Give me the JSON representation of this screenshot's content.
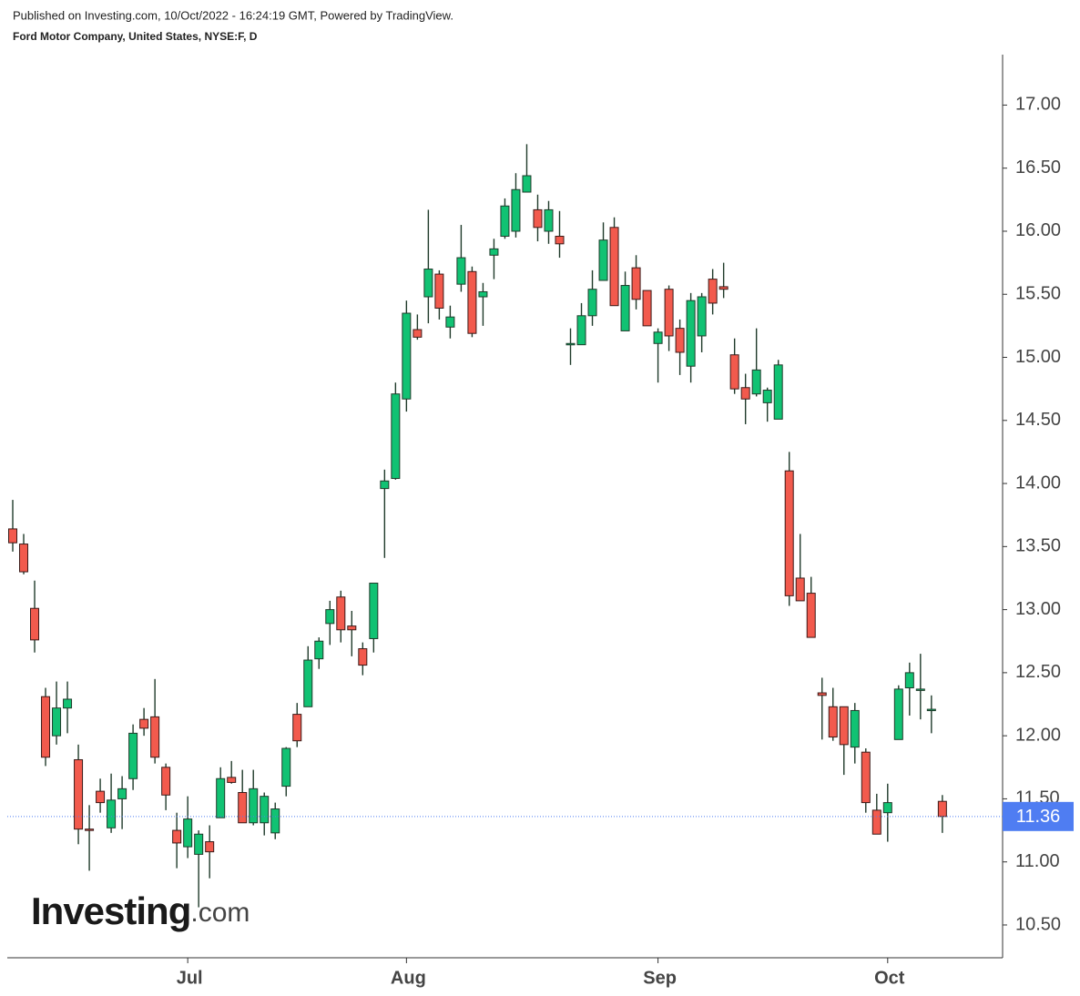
{
  "header": {
    "published": "Published on Investing.com, 10/Oct/2022 - 16:24:19 GMT, Powered by TradingView.",
    "symbol": "Ford Motor Company, United States, NYSE:F, D"
  },
  "logo": {
    "brand": "Investing",
    "suffix": ".com"
  },
  "chart_data": {
    "type": "candlestick",
    "categories": [
      null,
      null,
      null,
      null,
      null,
      null,
      null,
      null,
      null,
      null,
      null,
      null,
      null,
      null,
      null,
      null,
      "Jul",
      null,
      null,
      null,
      null,
      null,
      null,
      null,
      null,
      null,
      null,
      null,
      null,
      null,
      null,
      null,
      null,
      null,
      null,
      null,
      "Aug",
      null,
      null,
      null,
      null,
      null,
      null,
      null,
      null,
      null,
      null,
      null,
      null,
      null,
      null,
      null,
      null,
      null,
      null,
      null,
      null,
      null,
      null,
      "Sep",
      null,
      null,
      null,
      null,
      null,
      null,
      null,
      null,
      null,
      null,
      null,
      null,
      null,
      null,
      null,
      null,
      null,
      null,
      null,
      null,
      "Oct",
      null,
      null,
      null,
      null,
      null
    ],
    "open": [
      13.64,
      13.52,
      13.01,
      12.31,
      12.0,
      12.22,
      11.81,
      11.26,
      11.56,
      11.27,
      11.5,
      11.66,
      12.13,
      12.15,
      11.75,
      11.25,
      11.12,
      11.06,
      11.16,
      11.35,
      11.67,
      11.55,
      11.31,
      11.31,
      11.23,
      11.6,
      12.17,
      12.23,
      12.61,
      12.89,
      13.1,
      12.87,
      12.69,
      12.77,
      13.96,
      14.04,
      14.67,
      15.22,
      15.48,
      15.66,
      15.24,
      15.58,
      15.68,
      15.48,
      15.81,
      15.96,
      16.0,
      16.31,
      16.17,
      16.0,
      15.96,
      15.1,
      15.1,
      15.33,
      15.61,
      16.03,
      15.21,
      15.71,
      15.53,
      15.11,
      15.54,
      15.23,
      14.93,
      15.17,
      15.62,
      15.56,
      15.02,
      14.76,
      14.71,
      14.64,
      14.51,
      14.1,
      13.25,
      13.13,
      12.34,
      12.23,
      12.23,
      11.91,
      11.87,
      11.41,
      11.39,
      11.97,
      12.38,
      12.36,
      12.2,
      11.48
    ],
    "high": [
      13.87,
      13.6,
      13.23,
      12.38,
      12.43,
      12.43,
      11.93,
      11.45,
      11.66,
      11.7,
      11.68,
      12.09,
      12.22,
      12.45,
      11.78,
      11.39,
      11.52,
      11.25,
      11.29,
      11.75,
      11.8,
      11.73,
      11.73,
      11.55,
      11.47,
      11.91,
      12.26,
      12.71,
      12.78,
      13.07,
      13.15,
      12.99,
      12.74,
      13.21,
      14.11,
      14.8,
      15.45,
      15.34,
      16.17,
      15.69,
      15.41,
      16.05,
      15.72,
      15.59,
      15.94,
      16.26,
      16.46,
      16.69,
      16.29,
      16.24,
      16.16,
      15.23,
      15.43,
      15.69,
      16.07,
      16.11,
      15.68,
      15.81,
      15.53,
      15.23,
      15.57,
      15.3,
      15.51,
      15.51,
      15.7,
      15.75,
      15.15,
      14.87,
      15.23,
      14.76,
      14.98,
      14.25,
      13.6,
      13.26,
      12.46,
      12.38,
      12.23,
      12.26,
      11.9,
      11.54,
      11.62,
      12.4,
      12.58,
      12.65,
      12.32,
      11.53
    ],
    "low": [
      13.46,
      13.28,
      12.66,
      11.76,
      11.93,
      12.02,
      11.14,
      10.93,
      11.39,
      11.23,
      11.26,
      11.57,
      12.0,
      11.78,
      11.41,
      10.95,
      11.03,
      10.64,
      10.87,
      11.35,
      11.62,
      11.31,
      11.29,
      11.21,
      11.18,
      11.52,
      11.91,
      12.23,
      12.53,
      12.72,
      12.74,
      12.63,
      12.48,
      12.66,
      13.41,
      14.03,
      14.57,
      15.14,
      15.27,
      15.3,
      15.15,
      15.52,
      15.16,
      15.25,
      15.62,
      15.94,
      15.95,
      16.31,
      15.92,
      15.9,
      15.79,
      14.94,
      15.1,
      15.25,
      15.61,
      15.41,
      15.21,
      15.38,
      15.25,
      14.8,
      15.05,
      14.86,
      14.8,
      15.04,
      15.34,
      15.47,
      14.71,
      14.47,
      14.69,
      14.49,
      14.51,
      13.03,
      13.07,
      12.78,
      11.97,
      11.96,
      11.69,
      11.78,
      11.39,
      11.22,
      11.16,
      11.97,
      12.16,
      12.13,
      12.02,
      11.23
    ],
    "close": [
      13.53,
      13.3,
      12.76,
      11.83,
      12.22,
      12.29,
      11.26,
      11.25,
      11.47,
      11.49,
      11.58,
      12.02,
      12.06,
      11.83,
      11.53,
      11.15,
      11.34,
      11.22,
      11.08,
      11.66,
      11.63,
      11.31,
      11.58,
      11.52,
      11.42,
      11.9,
      11.96,
      12.6,
      12.75,
      13.0,
      12.84,
      12.84,
      12.56,
      13.21,
      14.02,
      14.71,
      15.35,
      15.16,
      15.7,
      15.39,
      15.32,
      15.79,
      15.19,
      15.52,
      15.86,
      16.2,
      16.33,
      16.44,
      16.03,
      16.17,
      15.9,
      15.11,
      15.33,
      15.54,
      15.93,
      15.41,
      15.57,
      15.46,
      15.25,
      15.2,
      15.17,
      15.04,
      15.45,
      15.48,
      15.43,
      15.54,
      14.75,
      14.67,
      14.9,
      14.74,
      14.94,
      13.11,
      13.07,
      12.78,
      12.32,
      11.99,
      11.93,
      12.2,
      11.47,
      11.22,
      11.47,
      12.37,
      12.5,
      12.37,
      12.21,
      11.36
    ],
    "up_color": "#11c273",
    "down_color": "#f25a4d",
    "last_price": 11.36,
    "last_price_color": "#4f7df2",
    "ylim": [
      10.24,
      17.4
    ],
    "yticks": [
      {
        "value": 10.5,
        "label": "10.50"
      },
      {
        "value": 11,
        "label": "11.00"
      },
      {
        "value": 11.5,
        "label": "11.50"
      },
      {
        "value": 12,
        "label": "12.00"
      },
      {
        "value": 12.5,
        "label": "12.50"
      },
      {
        "value": 13,
        "label": "13.00"
      },
      {
        "value": 13.5,
        "label": "13.50"
      },
      {
        "value": 14,
        "label": "14.00"
      },
      {
        "value": 14.5,
        "label": "14.50"
      },
      {
        "value": 15,
        "label": "15.00"
      },
      {
        "value": 15.5,
        "label": "15.50"
      },
      {
        "value": 16,
        "label": "16.00"
      },
      {
        "value": 16.5,
        "label": "16.50"
      },
      {
        "value": 17,
        "label": "17.00"
      }
    ],
    "grid": false
  }
}
